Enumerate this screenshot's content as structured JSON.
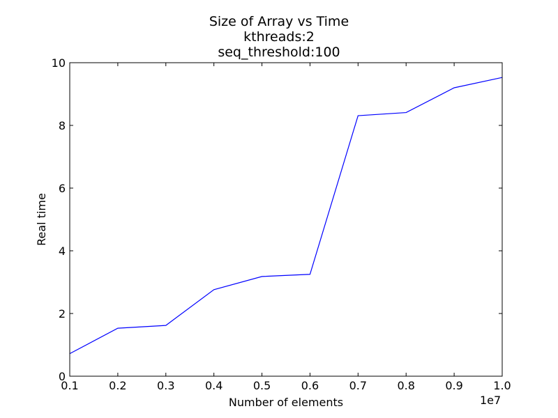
{
  "chart_data": {
    "type": "line",
    "title": "Size of Array vs Time",
    "subtitle": [
      "kthreads:2",
      "seq_threshold:100"
    ],
    "xlabel": "Number of elements",
    "ylabel": "Real time",
    "x_offset_label": "1e7",
    "xlim": [
      0.1,
      1.0
    ],
    "ylim": [
      0,
      10
    ],
    "x_ticks": [
      0.1,
      0.2,
      0.3,
      0.4,
      0.5,
      0.6,
      0.7,
      0.8,
      0.9,
      1.0
    ],
    "x_tick_labels": [
      "0.1",
      "0.2",
      "0.3",
      "0.4",
      "0.5",
      "0.6",
      "0.7",
      "0.8",
      "0.9",
      "1.0"
    ],
    "y_ticks": [
      0,
      2,
      4,
      6,
      8,
      10
    ],
    "y_tick_labels": [
      "0",
      "2",
      "4",
      "6",
      "8",
      "10"
    ],
    "grid": false,
    "series": [
      {
        "color": "#0000ff",
        "x": [
          0.1,
          0.2,
          0.3,
          0.4,
          0.5,
          0.6,
          0.7,
          0.8,
          0.9,
          1.0
        ],
        "y": [
          0.72,
          1.53,
          1.62,
          2.76,
          3.18,
          3.25,
          8.31,
          8.41,
          9.2,
          9.53
        ]
      }
    ]
  }
}
